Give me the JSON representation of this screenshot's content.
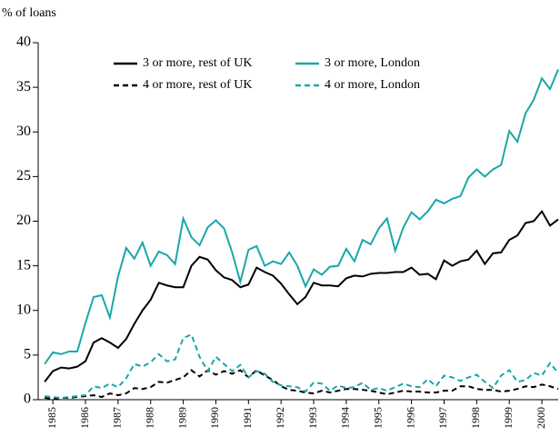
{
  "chart_data": {
    "type": "line",
    "y_label": "% of loans",
    "legend": "top",
    "x": [
      1984.75,
      1985,
      1985.25,
      1985.5,
      1985.75,
      1986,
      1986.25,
      1986.5,
      1986.75,
      1987,
      1987.25,
      1987.5,
      1987.75,
      1988,
      1988.25,
      1988.5,
      1988.75,
      1989,
      1989.25,
      1989.5,
      1989.75,
      1990,
      1990.25,
      1990.5,
      1990.75,
      1991,
      1991.25,
      1991.5,
      1991.75,
      1992,
      1992.25,
      1992.5,
      1992.75,
      1993,
      1993.25,
      1993.5,
      1993.75,
      1994,
      1994.25,
      1994.5,
      1994.75,
      1995,
      1995.25,
      1995.5,
      1995.75,
      1996,
      1996.25,
      1996.5,
      1996.75,
      1997,
      1997.25,
      1997.5,
      1997.75,
      1998,
      1998.25,
      1998.5,
      1998.75,
      1999,
      1999.25,
      1999.5,
      1999.75,
      2000,
      2000.25,
      2000.5
    ],
    "xlim": [
      1984.55,
      2000.5
    ],
    "xticks": [
      1985,
      1986,
      1987,
      1988,
      1989,
      1990,
      1991,
      1992,
      1993,
      1994,
      1995,
      1996,
      1997,
      1998,
      1999,
      2000
    ],
    "ylim": [
      0,
      40
    ],
    "yticks": [
      0,
      5,
      10,
      15,
      20,
      25,
      30,
      35,
      40
    ],
    "series": [
      {
        "name": "3 or more, rest of UK",
        "color": "#000000",
        "line_style": "solid",
        "values": [
          2,
          3.2,
          3.6,
          3.5,
          3.7,
          4.3,
          6.4,
          6.9,
          6.4,
          5.8,
          6.8,
          8.5,
          10,
          11.2,
          13.1,
          12.8,
          12.6,
          12.6,
          15,
          16,
          15.7,
          14.5,
          13.7,
          13.4,
          12.6,
          12.9,
          14.8,
          14.3,
          13.9,
          13,
          11.8,
          10.7,
          11.5,
          13.1,
          12.8,
          12.8,
          12.7,
          13.6,
          13.9,
          13.8,
          14.1,
          14.2,
          14.2,
          14.3,
          14.3,
          14.8,
          14,
          14.1,
          13.5,
          15.6,
          15,
          15.5,
          15.7,
          16.7,
          15.2,
          16.4,
          16.5,
          17.9,
          18.4,
          19.8,
          20,
          21.1,
          19.5,
          20.2
        ]
      },
      {
        "name": "4 or more, rest of UK",
        "color": "#000000",
        "line_style": "dashed",
        "values": [
          0.2,
          0.1,
          0.2,
          0.2,
          0.3,
          0.4,
          0.5,
          0.3,
          0.7,
          0.5,
          0.7,
          1.3,
          1.2,
          1.4,
          2,
          1.9,
          2.2,
          2.5,
          3.3,
          2.6,
          3.3,
          2.8,
          3.2,
          2.9,
          3.3,
          2.5,
          3.3,
          2.7,
          2.2,
          1.5,
          1.1,
          1,
          0.8,
          0.7,
          1,
          0.8,
          1,
          1.2,
          1.2,
          1.1,
          1,
          0.8,
          0.6,
          0.8,
          1,
          0.9,
          0.9,
          0.8,
          0.8,
          1,
          1,
          1.5,
          1.5,
          1.2,
          1.1,
          1.1,
          0.9,
          1,
          1.2,
          1.5,
          1.4,
          1.7,
          1.5,
          1.2
        ]
      },
      {
        "name": "3 or more, London",
        "color": "#1aa7a7",
        "line_style": "solid",
        "values": [
          4,
          5.3,
          5.1,
          5.4,
          5.4,
          8.6,
          11.5,
          11.7,
          9.2,
          13.8,
          17,
          15.8,
          17.6,
          15,
          16.6,
          16.2,
          15.2,
          20.3,
          18.2,
          17.3,
          19.3,
          20.1,
          19.2,
          16.5,
          13.2,
          16.8,
          17.2,
          15,
          15.5,
          15.2,
          16.5,
          15,
          12.7,
          14.6,
          14,
          14.9,
          15,
          16.9,
          15.5,
          17.9,
          17.4,
          19.2,
          20.3,
          16.7,
          19.3,
          21,
          20.2,
          21.1,
          22.4,
          22,
          22.5,
          22.8,
          24.9,
          25.8,
          25,
          25.8,
          26.3,
          30.1,
          28.9,
          32.1,
          33.6,
          36,
          34.8,
          37
        ]
      },
      {
        "name": "4 or more, London",
        "color": "#1aa7a7",
        "line_style": "dashed",
        "values": [
          0.4,
          0.3,
          0.2,
          0.3,
          0.4,
          0.5,
          1.5,
          1.3,
          1.8,
          1.4,
          2.4,
          4,
          3.7,
          4.2,
          5.1,
          4.3,
          4.5,
          6.9,
          7.3,
          4.8,
          3.2,
          4.8,
          4,
          3.2,
          3.9,
          2.5,
          3.2,
          2.9,
          2,
          1.6,
          1.5,
          1.4,
          0.9,
          1.9,
          1.8,
          1,
          1.6,
          1.3,
          1.4,
          1.9,
          1.1,
          1.3,
          1,
          1.4,
          1.8,
          1.5,
          1.4,
          2.3,
          1.5,
          2.7,
          2.5,
          2.1,
          2.5,
          2.8,
          2,
          1.3,
          2.7,
          3.3,
          2,
          2.2,
          3,
          2.7,
          4.1,
          3
        ]
      }
    ]
  }
}
